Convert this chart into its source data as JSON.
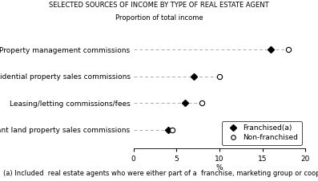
{
  "title": "SELECTED SOURCES OF INCOME BY TYPE OF REAL ESTATE AGENT",
  "subtitle": "Proportion of total income",
  "categories": [
    "Vacant land property sales commissions",
    "Leasing/letting commissions/fees",
    "Non-residential property sales commissions",
    "Property management commissions"
  ],
  "franchised": [
    4.0,
    6.0,
    7.0,
    16.0
  ],
  "non_franchised": [
    4.5,
    8.0,
    10.0,
    18.0
  ],
  "xlabel": "%",
  "xlim": [
    0,
    20
  ],
  "xticks": [
    0,
    5,
    10,
    15,
    20
  ],
  "footnote": "(a) Included  real estate agents who were either part of a  franchise, marketing group or cooperative",
  "legend_franchised": "Franchised(a)",
  "legend_non_franchised": "Non-franchised",
  "marker_size": 4.5,
  "line_color": "#aaaaaa",
  "background_color": "#ffffff",
  "text_color": "#000000",
  "title_fontsize": 6.0,
  "subtitle_fontsize": 6.0,
  "label_fontsize": 6.5,
  "tick_fontsize": 6.5,
  "footnote_fontsize": 6.0,
  "legend_fontsize": 6.5
}
